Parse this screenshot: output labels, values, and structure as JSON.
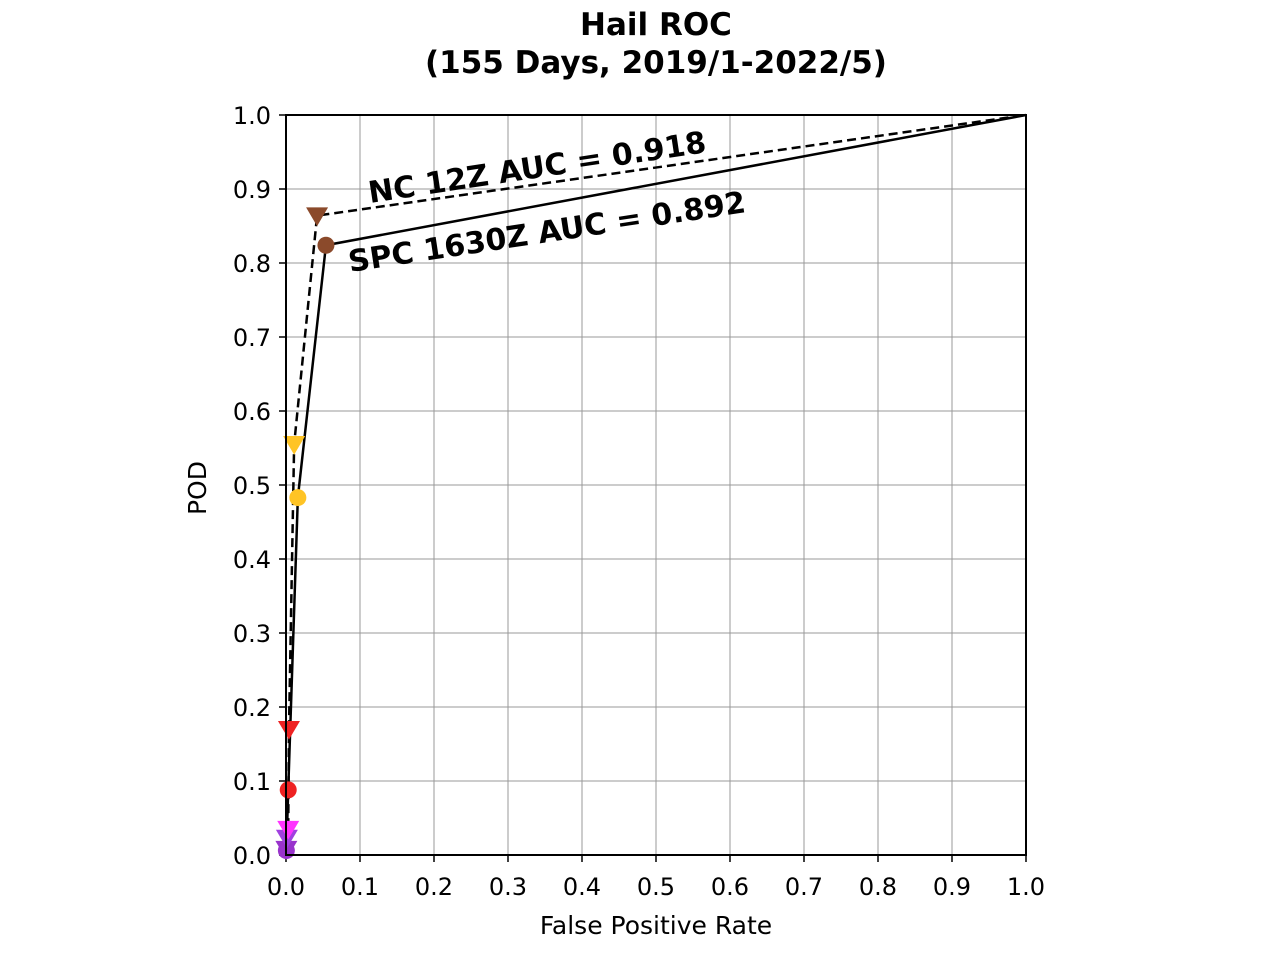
{
  "chart_data": {
    "type": "line",
    "title_line1": "Hail ROC",
    "title_line2": "(155 Days, 2019/1-2022/5)",
    "xlabel": "False Positive Rate",
    "ylabel": "POD",
    "xlim": [
      0.0,
      1.0
    ],
    "ylim": [
      0.0,
      1.0
    ],
    "x_ticks": [
      "0.0",
      "0.1",
      "0.2",
      "0.3",
      "0.4",
      "0.5",
      "0.6",
      "0.7",
      "0.8",
      "0.9",
      "1.0"
    ],
    "y_ticks": [
      "0.0",
      "0.1",
      "0.2",
      "0.3",
      "0.4",
      "0.5",
      "0.6",
      "0.7",
      "0.8",
      "0.9",
      "1.0"
    ],
    "grid": true,
    "series": [
      {
        "line_style": "dashed",
        "marker": "triangle-down",
        "annotation": "NC 12Z AUC = 0.918",
        "points": [
          {
            "x": 0.0,
            "y": 0.0,
            "color": null
          },
          {
            "x": 0.0005,
            "y": 0.008,
            "color": "#9933cc"
          },
          {
            "x": 0.0012,
            "y": 0.023,
            "color": "#a040e0"
          },
          {
            "x": 0.003,
            "y": 0.035,
            "color": "#ff33ff"
          },
          {
            "x": 0.004,
            "y": 0.17,
            "color": "#ee2222"
          },
          {
            "x": 0.011,
            "y": 0.555,
            "color": "#ffc425"
          },
          {
            "x": 0.042,
            "y": 0.864,
            "color": "#8b4a2b"
          },
          {
            "x": 1.0,
            "y": 1.0,
            "color": null
          }
        ]
      },
      {
        "line_style": "solid",
        "marker": "circle",
        "annotation": "SPC 1630Z AUC = 0.892",
        "points": [
          {
            "x": 0.0,
            "y": 0.0,
            "color": null
          },
          {
            "x": 0.0005,
            "y": 0.006,
            "color": "#9933cc"
          },
          {
            "x": 0.003,
            "y": 0.088,
            "color": "#ee2222"
          },
          {
            "x": 0.016,
            "y": 0.483,
            "color": "#ffc425"
          },
          {
            "x": 0.054,
            "y": 0.824,
            "color": "#8b4a2b"
          },
          {
            "x": 1.0,
            "y": 1.0,
            "color": null
          }
        ]
      }
    ]
  }
}
